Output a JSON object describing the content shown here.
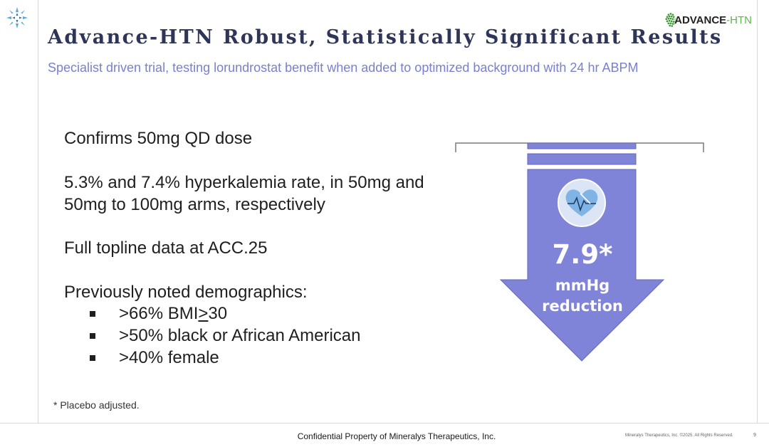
{
  "header": {
    "title": "Advance-HTN Robust, Statistically Significant Results",
    "subtitle": "Specialist driven trial, testing lorundrostat benefit when added to optimized background with 24 hr ABPM"
  },
  "brand": {
    "name_part1": "ADVANCE",
    "name_part2": "-HTN"
  },
  "content": {
    "line1": "Confirms 50mg QD dose",
    "line2a": "5.3% and 7.4% hyperkalemia rate, in 50mg and",
    "line2b": "50mg to 100mg arms, respectively",
    "line3": "Full topline data at ACC.25",
    "line4": "Previously noted demographics:",
    "bullets": {
      "b1_prefix": ">66% BMI ",
      "b1_symbol": ">",
      "b1_suffix": " 30",
      "b2": ">50% black or African American",
      "b3": ">40% female"
    }
  },
  "graphic": {
    "value": "7.9*",
    "unit_line1": "mmHg",
    "unit_line2": "reduction",
    "icon": "heart-monitor-icon",
    "arrow_color": "#8084d8",
    "arrow_stroke": "#6368b8"
  },
  "footnote": "* Placebo adjusted.",
  "footer": {
    "confidential": "Confidential Property of Mineralys Therapeutics, Inc.",
    "rights": "Mineralys Therapeutics, Inc. ©2025. All Rights Reserved.",
    "page": "9"
  }
}
